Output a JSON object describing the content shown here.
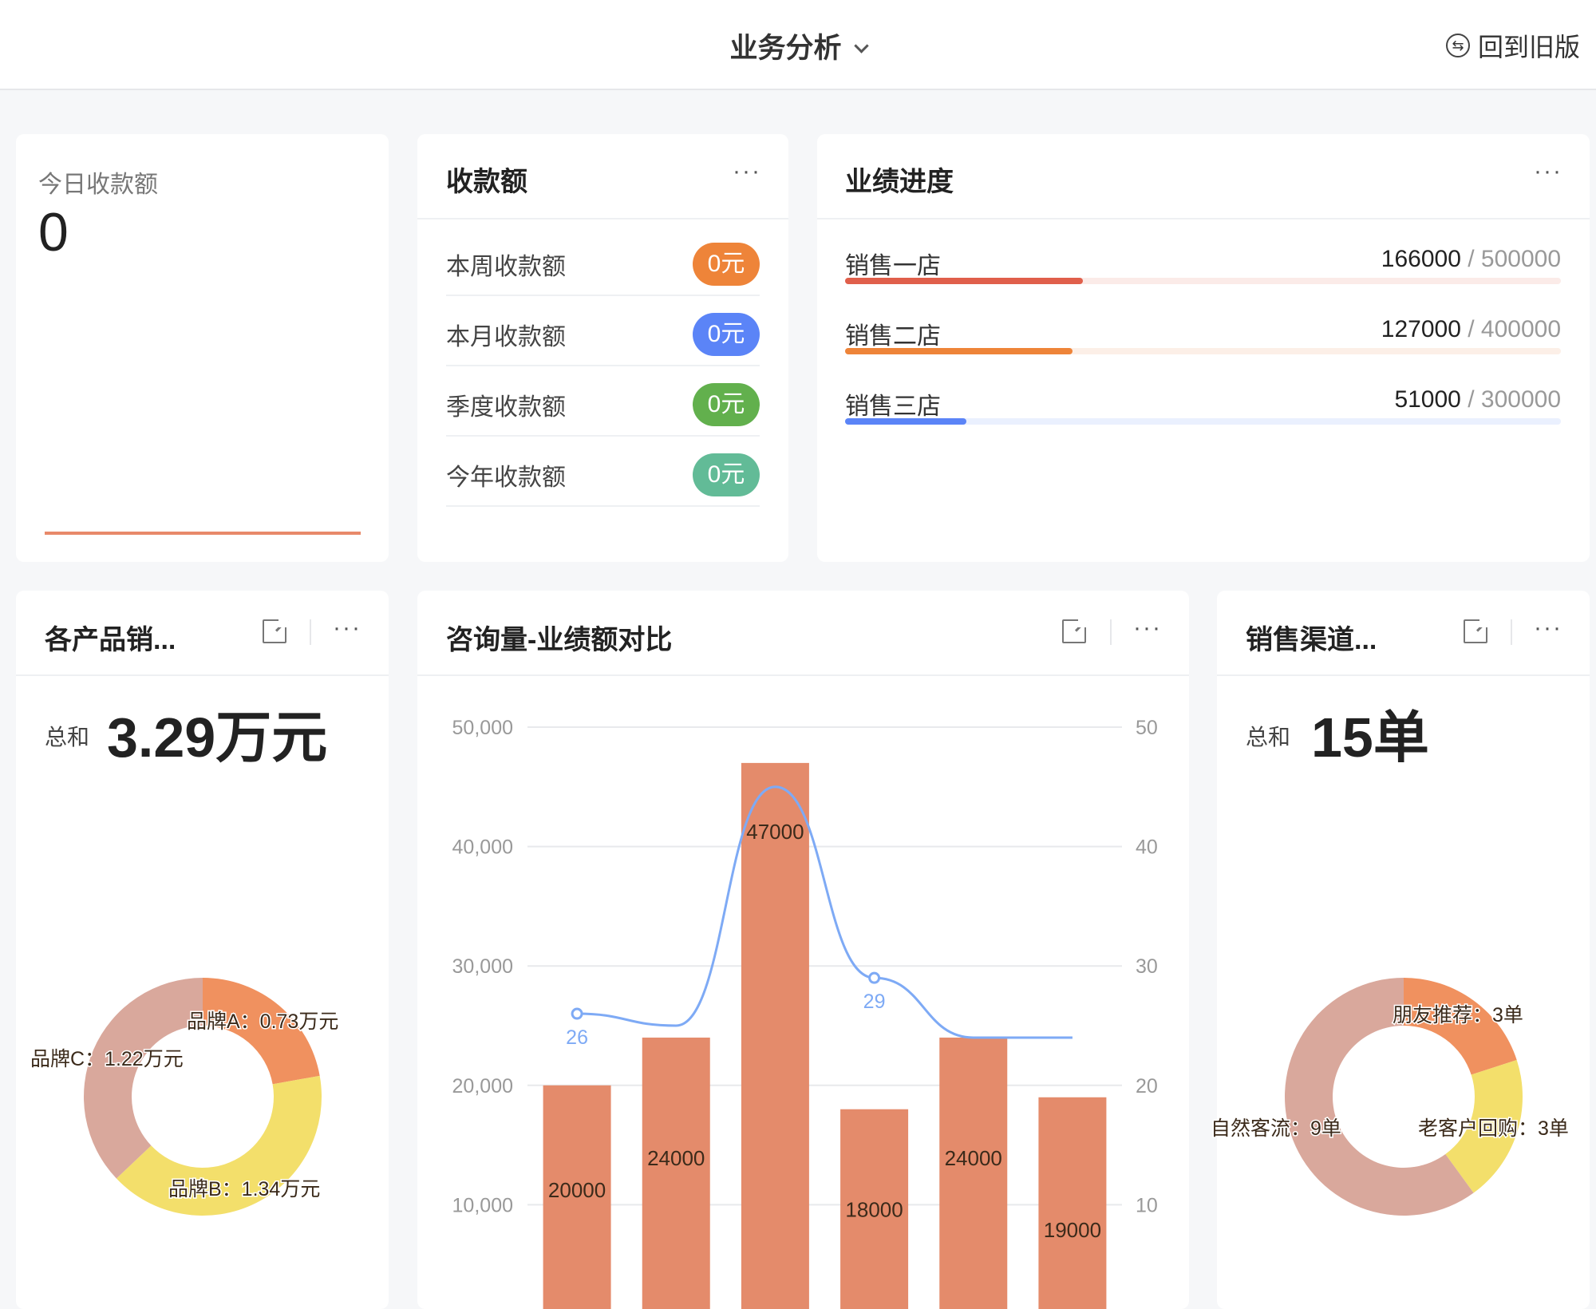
{
  "header": {
    "title": "业务分析",
    "back_label": "回到旧版",
    "back_icon": "switch-circle-icon"
  },
  "today": {
    "label": "今日收款额",
    "value": "0",
    "accent": "#e8896a"
  },
  "receipts": {
    "title": "收款额",
    "items": [
      {
        "label": "本周收款额",
        "value": "0元",
        "color": "#ee8439"
      },
      {
        "label": "本月收款额",
        "value": "0元",
        "color": "#5b84f7"
      },
      {
        "label": "季度收款额",
        "value": "0元",
        "color": "#62b04d"
      },
      {
        "label": "今年收款额",
        "value": "0元",
        "color": "#62bb97"
      }
    ]
  },
  "progress": {
    "title": "业绩进度",
    "items": [
      {
        "label": "销售一店",
        "current": "166000",
        "target": "500000",
        "fraction": 0.332,
        "color": "#e05f4b",
        "track": "#fbebe8"
      },
      {
        "label": "销售二店",
        "current": "127000",
        "target": "400000",
        "fraction": 0.3175,
        "color": "#ee8439",
        "track": "#fcefe7"
      },
      {
        "label": "销售三店",
        "current": "51000",
        "target": "300000",
        "fraction": 0.17,
        "color": "#5b84f7",
        "track": "#eaf0fe"
      }
    ]
  },
  "products": {
    "title": "各产品销...",
    "sum_label": "总和",
    "sum_value": "3.29万元",
    "chart_data": {
      "type": "pie",
      "donut": true,
      "categories": [
        "品牌A",
        "品牌B",
        "品牌C"
      ],
      "values": [
        0.73,
        1.34,
        1.22
      ],
      "unit": "万元",
      "labels": [
        "品牌A：0.73万元",
        "品牌B：1.34万元",
        "品牌C：1.22万元"
      ],
      "colors": [
        "#f0915f",
        "#f3df6b",
        "#d9a89c"
      ]
    }
  },
  "compare": {
    "title": "咨询量-业绩额对比",
    "chart_data": {
      "type": "bar+line",
      "left_axis": {
        "ticks": [
          "10,000",
          "20,000",
          "30,000",
          "40,000",
          "50,000"
        ],
        "range": [
          0,
          50000
        ]
      },
      "right_axis": {
        "ticks": [
          "10",
          "20",
          "30",
          "40",
          "50"
        ],
        "range": [
          0,
          50
        ]
      },
      "bars": {
        "values": [
          20000,
          24000,
          47000,
          18000,
          24000,
          19000
        ],
        "labels": [
          "20000",
          "24000",
          "47000",
          "18000",
          "24000",
          "19000"
        ],
        "color": "#e48b6b"
      },
      "line": {
        "values": [
          26,
          25,
          45,
          29,
          24,
          24
        ],
        "labels": [
          "26",
          "",
          "",
          "29",
          "",
          ""
        ],
        "color": "#7eaaf5",
        "smooth": true
      },
      "grid": true
    }
  },
  "channels": {
    "title": "销售渠道...",
    "sum_label": "总和",
    "sum_value": "15单",
    "chart_data": {
      "type": "pie",
      "donut": true,
      "categories": [
        "朋友推荐",
        "老客户回购",
        "自然客流"
      ],
      "values": [
        3,
        3,
        9
      ],
      "unit": "单",
      "labels": [
        "朋友推荐：3单",
        "老客户回购：3单",
        "自然客流：9单"
      ],
      "colors": [
        "#f0915f",
        "#f3df6b",
        "#d9a89c"
      ]
    }
  }
}
